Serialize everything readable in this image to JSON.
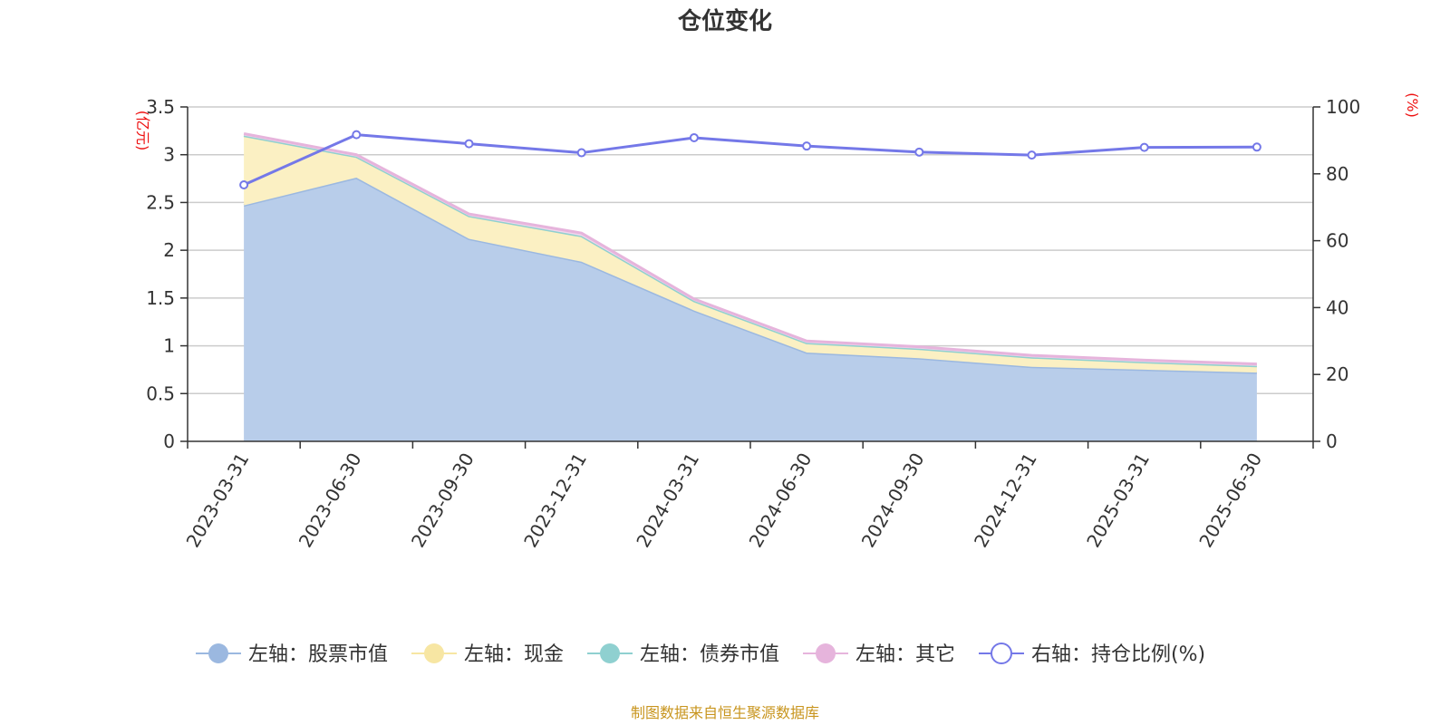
{
  "chart_data": {
    "type": "area",
    "title": "仓位变化",
    "x": [
      "2023-03-31",
      "2023-06-30",
      "2023-09-30",
      "2023-12-31",
      "2024-03-31",
      "2024-06-30",
      "2024-09-30",
      "2024-12-31",
      "2025-03-31",
      "2025-06-30"
    ],
    "left_axis": {
      "unit": "(亿元)",
      "ylim": [
        0,
        3.5
      ],
      "ticks": [
        "0",
        "0.5",
        "1",
        "1.5",
        "2",
        "2.5",
        "3",
        "3.5"
      ]
    },
    "right_axis": {
      "unit": "(%)",
      "ylim": [
        0,
        100
      ],
      "ticks": [
        "0",
        "20",
        "40",
        "60",
        "80",
        "100"
      ]
    },
    "stacked": true,
    "grid": true,
    "legend_position": "bottom",
    "series": [
      {
        "name": "左轴：股票市值",
        "axis": "left",
        "type": "area",
        "color": "#9bb8e0",
        "fill": "#b8cdea",
        "values": [
          2.47,
          2.76,
          2.12,
          1.88,
          1.37,
          0.93,
          0.87,
          0.78,
          0.75,
          0.72
        ]
      },
      {
        "name": "左轴：现金",
        "axis": "left",
        "type": "area",
        "color": "#f7e6a3",
        "fill": "#fbf0c3",
        "values": [
          0.73,
          0.22,
          0.24,
          0.27,
          0.1,
          0.1,
          0.1,
          0.1,
          0.08,
          0.07
        ]
      },
      {
        "name": "左轴：债券市值",
        "axis": "left",
        "type": "area",
        "color": "#8fd0d0",
        "fill": "#b5e2e2",
        "values": [
          0,
          0,
          0,
          0,
          0,
          0,
          0,
          0,
          0,
          0
        ]
      },
      {
        "name": "左轴：其它",
        "axis": "left",
        "type": "area",
        "color": "#e6b4dc",
        "fill": "#f2d6ec",
        "values": [
          0.02,
          0.02,
          0.02,
          0.03,
          0.02,
          0.02,
          0.02,
          0.02,
          0.02,
          0.02
        ]
      },
      {
        "name": "右轴：持仓比例(%)",
        "axis": "right",
        "type": "line",
        "color": "#7478e8",
        "values": [
          76.7,
          91.7,
          89.0,
          86.3,
          90.8,
          88.3,
          86.5,
          85.6,
          87.9,
          88.0
        ]
      }
    ],
    "source": "制图数据来自恒生聚源数据库"
  }
}
